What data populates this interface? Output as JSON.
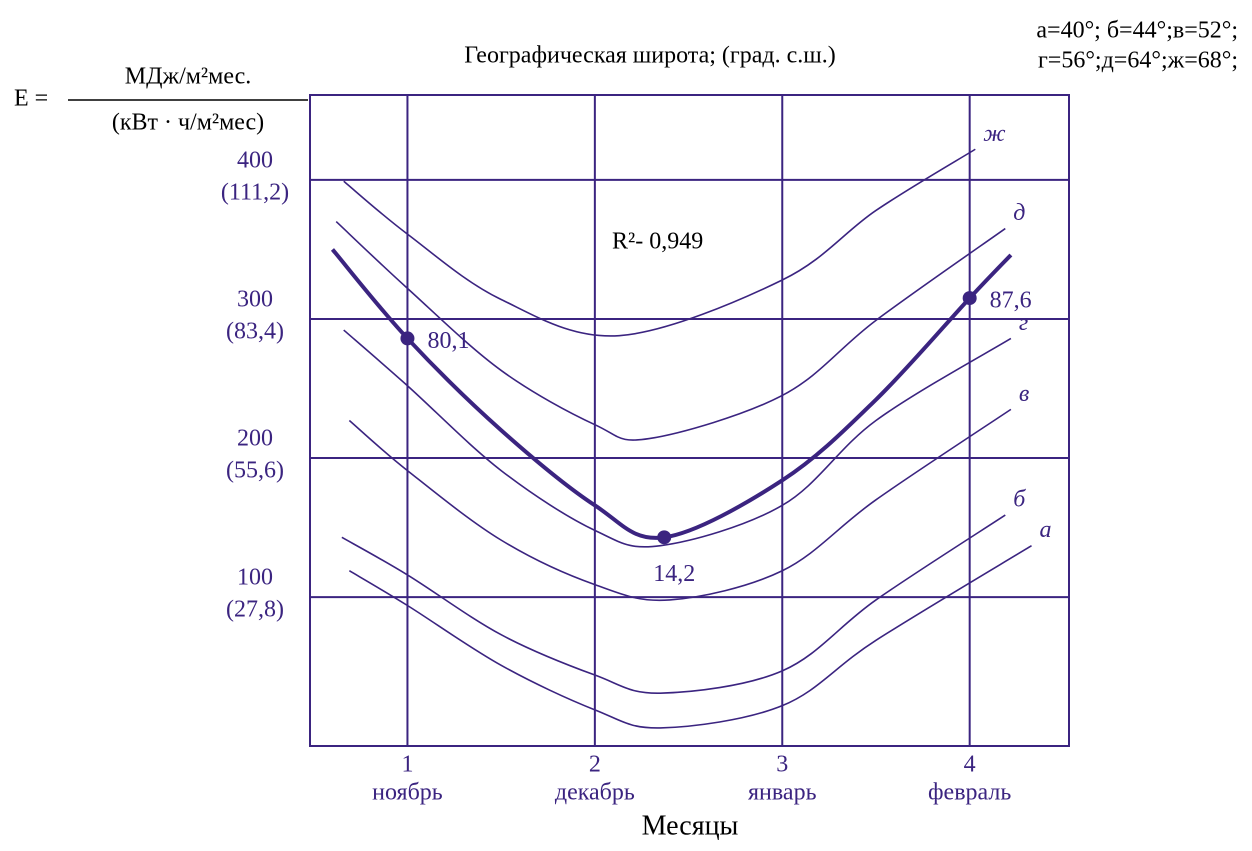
{
  "chart_data": {
    "type": "line",
    "title": "Географическая широта; (град. с.ш.)",
    "xlabel": "Месяцы",
    "ylabel": {
      "lhs": "E =",
      "numerator": "МДж/м²мес.",
      "denominator": "(кВт · ч/м²мес)"
    },
    "legend_note": [
      "а=40°; б=44°;в=52°;",
      "г=56°;д=64°;ж=68°;"
    ],
    "r2_note": "R²- 0,949",
    "xlim": [
      0.48,
      4.53
    ],
    "ylim": [
      -7,
      461
    ],
    "xticks": [
      1,
      2,
      3,
      4
    ],
    "xtick_sublabels": [
      "ноябрь",
      "декабрь",
      "январь",
      "февраль"
    ],
    "yticks": [
      100,
      200,
      300,
      400
    ],
    "ytick_sublabels": [
      "(27,8)",
      "(55,6)",
      "(83,4)",
      "(111,2)"
    ],
    "grid": true,
    "color": "#3b2480",
    "series": [
      {
        "x": [
          0.6,
          1,
          1.5,
          2,
          2.37,
          3,
          3.5,
          4,
          4.22
        ],
        "values": [
          350,
          286,
          220,
          166,
          143,
          184,
          242,
          315,
          346
        ],
        "line_width": 4
      },
      {
        "name": "ж",
        "x": [
          0.66,
          1,
          1.5,
          2.13,
          3,
          3.5,
          4.03
        ],
        "values": [
          399,
          361,
          314,
          288,
          328,
          378,
          422
        ],
        "line_width": 1.6
      },
      {
        "name": "д",
        "x": [
          0.62,
          1,
          1.5,
          2,
          2.29,
          3,
          3.5,
          4.19
        ],
        "values": [
          370,
          322,
          263,
          224,
          214,
          245,
          299,
          365
        ],
        "line_width": 1.6
      },
      {
        "name": "г",
        "x": [
          0.66,
          1,
          1.5,
          2,
          2.35,
          3,
          3.5,
          4.22
        ],
        "values": [
          292,
          252,
          191,
          148,
          137,
          166,
          227,
          286
        ],
        "line_width": 1.6
      },
      {
        "name": "в",
        "x": [
          0.69,
          1,
          1.5,
          2,
          2.4,
          3,
          3.5,
          4.22
        ],
        "values": [
          227,
          191,
          141,
          109,
          98,
          119,
          170,
          235
        ],
        "line_width": 1.6
      },
      {
        "name": "б",
        "x": [
          0.65,
          1,
          1.5,
          2,
          2.35,
          3,
          3.5,
          4.19
        ],
        "values": [
          143,
          116,
          73,
          44,
          31,
          47,
          98,
          159
        ],
        "line_width": 1.6
      },
      {
        "name": "а",
        "x": [
          0.69,
          1,
          1.5,
          2,
          2.35,
          3,
          3.5,
          4.33
        ],
        "values": [
          119,
          94,
          51,
          19,
          6,
          22,
          69,
          137
        ],
        "line_width": 1.6
      }
    ],
    "annotations": [
      {
        "text": "80,1",
        "x": 1,
        "y": 286
      },
      {
        "text": "14,2",
        "x": 2.37,
        "y": 143
      },
      {
        "text": "87,6",
        "x": 4,
        "y": 315
      }
    ]
  }
}
